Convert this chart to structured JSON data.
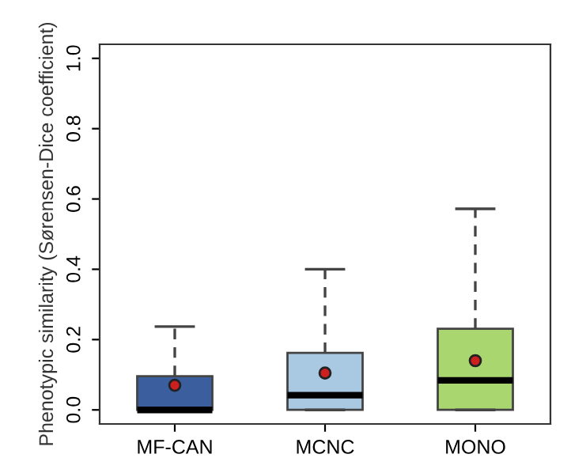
{
  "chart_data": {
    "type": "box",
    "ylabel": "Phenotypic similarity (Sørensen-Dice coefficient)",
    "categories": [
      "MF-CAN",
      "MCNC",
      "MONO"
    ],
    "colors": [
      "#3a5e9e",
      "#a9c9e3",
      "#aad670"
    ],
    "boxes": [
      {
        "low": 0,
        "q1": 0,
        "median": 0,
        "q3": 0.096,
        "high": 0.237,
        "mean": 0.07
      },
      {
        "low": 0,
        "q1": 0,
        "median": 0.042,
        "q3": 0.162,
        "high": 0.4,
        "mean": 0.105
      },
      {
        "low": 0,
        "q1": 0,
        "median": 0.084,
        "q3": 0.231,
        "high": 0.572,
        "mean": 0.14
      }
    ],
    "ylim": [
      -0.04,
      1.04
    ],
    "yticks": [
      {
        "value": 0,
        "label": "0.0"
      },
      {
        "value": 0.2,
        "label": "0.2"
      },
      {
        "value": 0.4,
        "label": "0.4"
      },
      {
        "value": 0.6,
        "label": "0.6"
      },
      {
        "value": 0.8,
        "label": "0.8"
      },
      {
        "value": 1.0,
        "label": "1.0"
      }
    ],
    "grid": false
  }
}
